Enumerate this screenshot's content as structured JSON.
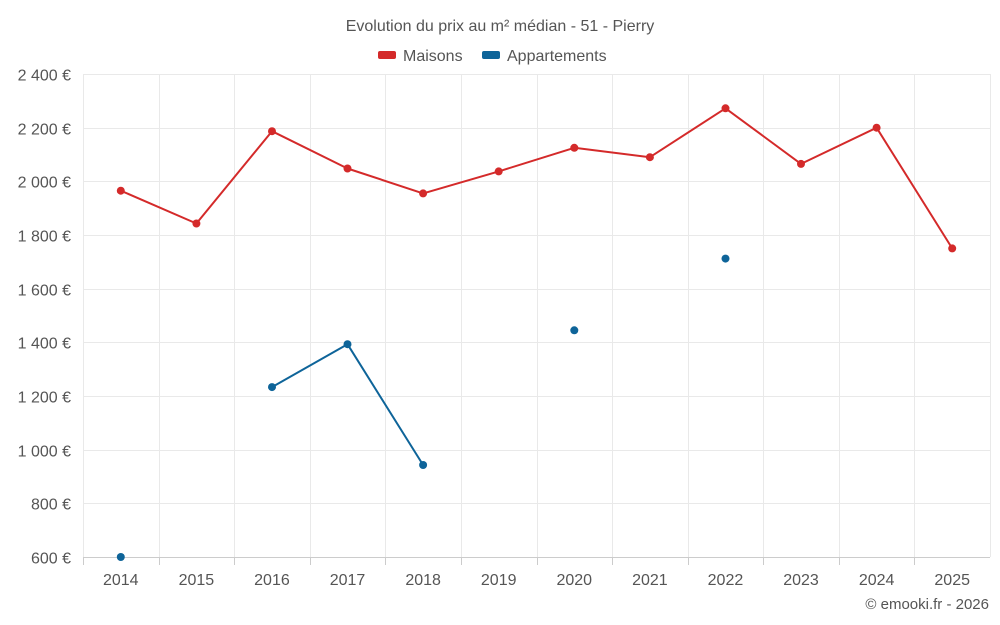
{
  "chart_data": {
    "type": "line",
    "title": "Evolution du prix au m² médian - 51 - Pierry",
    "x": [
      "2014",
      "2015",
      "2016",
      "2017",
      "2018",
      "2019",
      "2020",
      "2021",
      "2022",
      "2023",
      "2024",
      "2025"
    ],
    "ylim": [
      600,
      2400
    ],
    "y_ticks": [
      "600 €",
      "800 €",
      "1 000 €",
      "1 200 €",
      "1 400 €",
      "1 600 €",
      "1 800 €",
      "2 000 €",
      "2 200 €",
      "2 400 €"
    ],
    "y_tick_values": [
      600,
      800,
      1000,
      1200,
      1400,
      1600,
      1800,
      2000,
      2200,
      2400
    ],
    "grid": true,
    "legend_position": "top-center",
    "series": [
      {
        "name": "Maisons",
        "color": "#d42a2a",
        "values": [
          1965,
          1843,
          2187,
          2048,
          1955,
          2037,
          2125,
          2090,
          2272,
          2065,
          2200,
          1750
        ]
      },
      {
        "name": "Appartements",
        "color": "#0e6499",
        "values": [
          600,
          null,
          1233,
          1393,
          943,
          null,
          1445,
          null,
          1712,
          null,
          null,
          null
        ]
      }
    ],
    "credit": "© emooki.fr - 2026"
  }
}
